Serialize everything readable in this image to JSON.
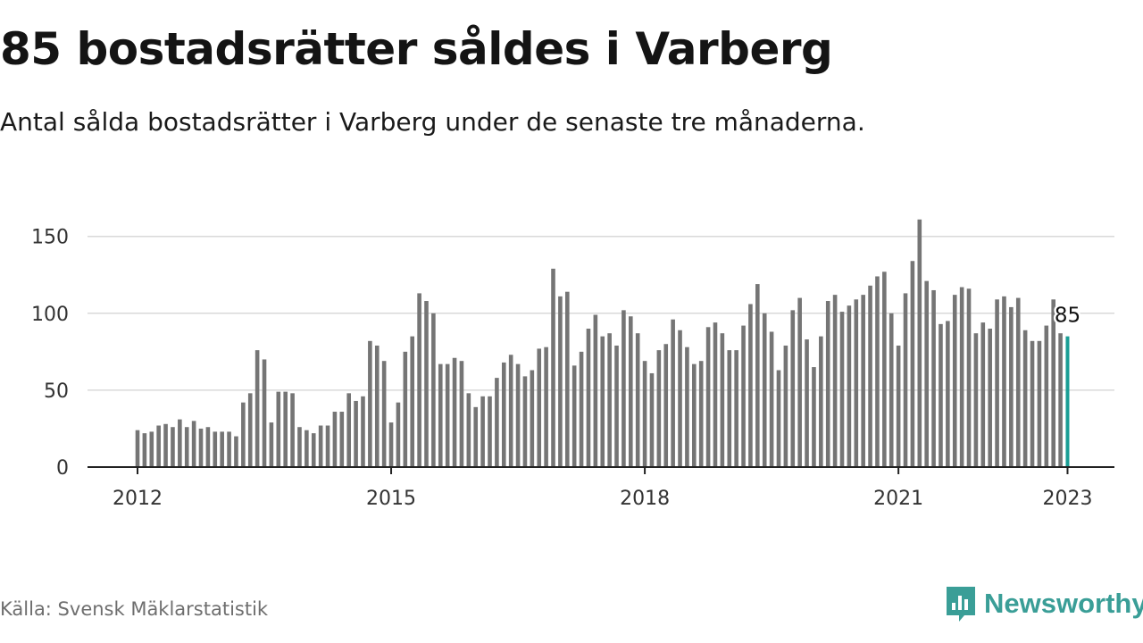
{
  "header": {
    "title": "85 bostadsrätter såldes i Varberg",
    "subtitle": "Antal sålda bostadsrätter i Varberg under de senaste tre månaderna."
  },
  "footer": {
    "source": "Källa: Svensk Mäklarstatistik",
    "brand_name": "Newsworthy",
    "brand_icon": "newsworthy-logo-icon"
  },
  "colors": {
    "bar": "#757575",
    "highlight": "#1a9e95",
    "grid": "#d9d9d9",
    "axis": "#222222",
    "brand": "#3a9e97"
  },
  "chart_data": {
    "type": "bar",
    "title": "85 bostadsrätter såldes i Varberg",
    "subtitle": "Antal sålda bostadsrätter i Varberg under de senaste tre månaderna.",
    "xlabel": "",
    "ylabel": "",
    "ylim": [
      0,
      165
    ],
    "yticks": [
      0,
      50,
      100,
      150
    ],
    "xticks": [
      "2012",
      "2015",
      "2018",
      "2021",
      "2023"
    ],
    "grid": true,
    "legend": "none",
    "start": "2012-01",
    "interval": "month",
    "highlight_last": true,
    "last_value_label": "85",
    "values": [
      24,
      22,
      23,
      27,
      28,
      26,
      31,
      26,
      30,
      25,
      26,
      23,
      23,
      23,
      20,
      42,
      48,
      76,
      70,
      29,
      49,
      49,
      48,
      26,
      24,
      22,
      27,
      27,
      36,
      36,
      48,
      43,
      46,
      82,
      79,
      69,
      29,
      42,
      75,
      85,
      113,
      108,
      100,
      67,
      67,
      71,
      69,
      48,
      39,
      46,
      46,
      58,
      68,
      73,
      67,
      59,
      63,
      77,
      78,
      129,
      111,
      114,
      66,
      75,
      90,
      99,
      85,
      87,
      79,
      102,
      98,
      87,
      69,
      61,
      76,
      80,
      96,
      89,
      78,
      67,
      69,
      91,
      94,
      87,
      76,
      76,
      92,
      106,
      119,
      100,
      88,
      63,
      79,
      102,
      110,
      83,
      65,
      85,
      108,
      112,
      101,
      105,
      109,
      112,
      118,
      124,
      127,
      100,
      79,
      113,
      134,
      161,
      121,
      115,
      93,
      95,
      112,
      117,
      116,
      87,
      94,
      90,
      109,
      111,
      104,
      110,
      89,
      82,
      82,
      92,
      109,
      87,
      85
    ]
  }
}
